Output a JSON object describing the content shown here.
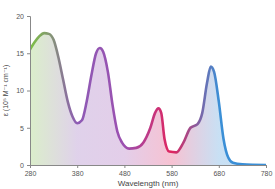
{
  "chart_data": {
    "type": "area",
    "x_label": "Wavelength (nm)",
    "y_label": "ε (10⁵ M⁻¹ cm⁻¹)",
    "x": [
      280,
      290,
      300,
      310,
      320,
      330,
      340,
      350,
      360,
      370,
      380,
      390,
      400,
      410,
      420,
      428,
      435,
      445,
      455,
      465,
      475,
      490,
      505,
      520,
      535,
      545,
      552,
      558,
      565,
      575,
      590,
      605,
      620,
      635,
      645,
      655,
      663,
      670,
      680,
      690,
      700,
      710,
      730,
      780
    ],
    "series": [
      {
        "colors": [
          "#7dc243",
          "#8e5bb5",
          "#9b4fb0",
          "#e0245e",
          "#3b8fd6",
          "#3b8fd6"
        ],
        "values": [
          15.5,
          16.5,
          17.3,
          17.7,
          17.6,
          16.8,
          14.5,
          11.5,
          8.5,
          6.5,
          5.6,
          6.0,
          8.5,
          12.0,
          15.0,
          15.7,
          15.2,
          12.5,
          8.0,
          4.5,
          3.0,
          2.2,
          2.3,
          3.0,
          5.0,
          7.0,
          7.6,
          7.0,
          3.5,
          1.8,
          1.7,
          3.0,
          5.0,
          5.5,
          7.0,
          11.0,
          13.2,
          12.5,
          8.5,
          3.5,
          1.0,
          0.3,
          0.1,
          0
        ]
      }
    ],
    "xlim": [
      280,
      780
    ],
    "xticks": [
      280,
      380,
      480,
      580,
      680,
      780
    ],
    "ylim": [
      0,
      20
    ],
    "yticks": [
      0,
      5,
      10,
      15,
      20
    ],
    "grid": false
  }
}
